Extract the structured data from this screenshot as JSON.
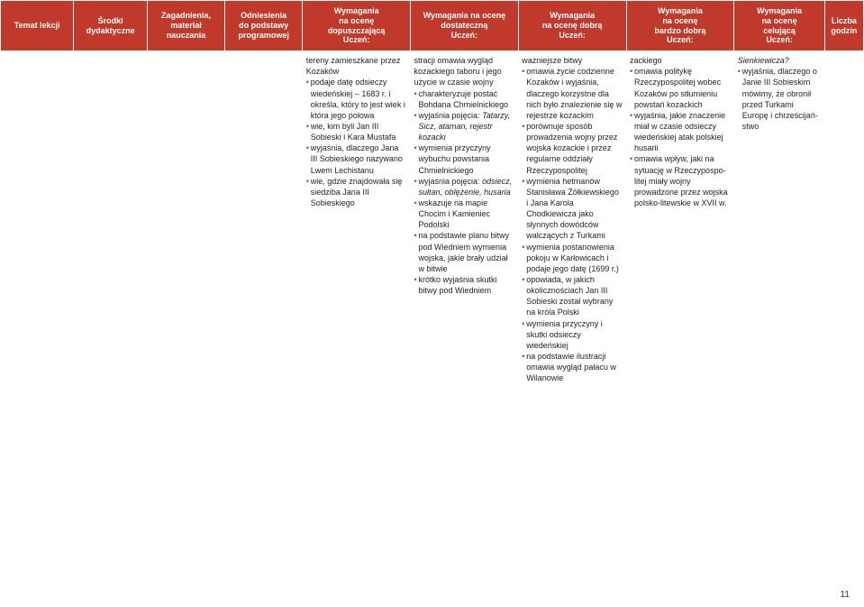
{
  "headers": [
    "Temat lekcji",
    "Środki\ndydaktyczne",
    "Zagadnienia,\nmateriał\nnauczania",
    "Odniesienia\ndo podstawy\nprogramowej",
    "Wymagania\nna ocenę\ndopuszczającą\nUczeń:",
    "Wymagania na ocenę\ndostateczną\nUczeń:",
    "Wymagania\nna ocenę dobrą\nUczeń:",
    "Wymagania\nna ocenę\nbardzo dobrą\nUczeń:",
    "Wymagania\nna ocenę\ncelującą\nUczeń:",
    "Liczba\ngodzin"
  ],
  "cells": {
    "c4": [
      {
        "t": "p",
        "v": "tereny zamieszkane przez Kozaków"
      },
      {
        "t": "b",
        "v": "podaje datę odsieczy wiedeńskiej – 1683 r. i określa, który to jest wiek i która jego połowa"
      },
      {
        "t": "b",
        "v": "wie, kim byli Jan III Sobieski i Kara Mustafa"
      },
      {
        "t": "b",
        "v": "wyjaśnia, dlaczego Jana III Sobieskiego nazywano Lwem Lechistanu"
      },
      {
        "t": "b",
        "v": "wie, gdzie znajdowała się siedziba Jana III Sobieskiego"
      }
    ],
    "c5": [
      {
        "t": "p",
        "v": "stracji omawia wygląd kozackiego taboru i jego użycie w czasie wojny"
      },
      {
        "t": "b",
        "v": "charakteryzuje postać Bohdana Chmielnickiego"
      },
      {
        "t": "bi",
        "v": "wyjaśnia pojęcia: ",
        "i": "Tatarzy, Sicz, ataman, rejestr kozacki"
      },
      {
        "t": "b",
        "v": "wymienia przyczyny wybuchu powstania Chmielnickiego"
      },
      {
        "t": "bi",
        "v": "wyjaśnia pojęcia: ",
        "i": "odsiecz, sułtan, oblężenie, husaria"
      },
      {
        "t": "b",
        "v": "wskazuje na mapie Chocim i Kamieniec Podolski"
      },
      {
        "t": "b",
        "v": "na podstawie planu bitwy pod Wiedniem wymienia wojska, jakie brały udział w bitwie"
      },
      {
        "t": "b",
        "v": "krótko wyjaśnia skutki bitwy pod Wiedniem"
      }
    ],
    "c6": [
      {
        "t": "p",
        "v": "ważniejsze bitwy"
      },
      {
        "t": "b",
        "v": "omawia życie codzienne Kozaków i wyjaśnia, dlaczego korzystne dla nich było znalezienie się w rejestrze kozackim"
      },
      {
        "t": "b",
        "v": "porównuje sposób prowadzenia wojny przez wojska kozackie i przez regularne oddziały Rzeczypospolitej"
      },
      {
        "t": "b",
        "v": "wymienia hetmanów Stanisława Żółkiewskiego i Jana Karola Chodkiewicza jako słynnych dowódców walczących z Turkami"
      },
      {
        "t": "b",
        "v": "wymienia postanowienia pokoju w Karłowicach i podaje jego datę (1699 r.)"
      },
      {
        "t": "b",
        "v": "opowiada, w jakich okolicznościach Jan III Sobieski został wybrany na króla Polski"
      },
      {
        "t": "b",
        "v": "wymienia przyczyny i skutki odsieczy wiedeńskiej"
      },
      {
        "t": "b",
        "v": "na podstawie ilustracji omawia wygląd pałacu w Wilanowie"
      }
    ],
    "c7": [
      {
        "t": "p",
        "v": "zackiego"
      },
      {
        "t": "b",
        "v": "omawia politykę Rzeczypospolitej wobec Kozaków po stłumieniu powstań kozackich"
      },
      {
        "t": "b",
        "v": "wyjaśnia, jakie znaczenie miał w czasie odsieczy wiedeńskiej atak polskiej husarii"
      },
      {
        "t": "b",
        "v": "omawia wpływ, jaki na sytuację w Rzeczypospo-litej miały wojny prowadzone przez wojska polsko-litewskie w XVII w."
      }
    ],
    "c8": [
      {
        "t": "pi",
        "v": "",
        "i": "Sienkiewicza?"
      },
      {
        "t": "b",
        "v": "wyjaśnia, dlaczego o Janie III Sobieskim mówimy, że obronił przed Turkami Europę i chrześcijań-stwo"
      }
    ]
  },
  "pagenum": "11"
}
